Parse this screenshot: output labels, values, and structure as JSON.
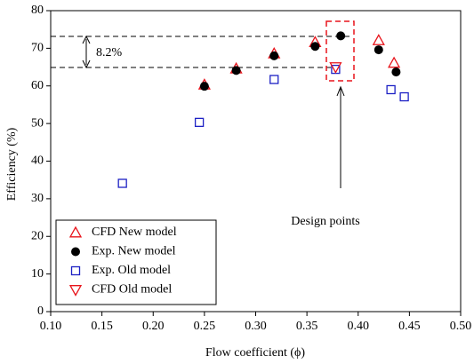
{
  "chart_data": {
    "type": "scatter",
    "xlabel": "Flow coefficient (ϕ)",
    "ylabel": "Efficiency (%)",
    "xlim": [
      0.1,
      0.5
    ],
    "ylim": [
      0,
      80
    ],
    "xticks": [
      {
        "value": 0.1,
        "label": "0.10"
      },
      {
        "value": 0.15,
        "label": "0.15"
      },
      {
        "value": 0.2,
        "label": "0.20"
      },
      {
        "value": 0.25,
        "label": "0.25"
      },
      {
        "value": 0.3,
        "label": "0.30"
      },
      {
        "value": 0.35,
        "label": "0.35"
      },
      {
        "value": 0.4,
        "label": "0.40"
      },
      {
        "value": 0.45,
        "label": "0.45"
      },
      {
        "value": 0.5,
        "label": "0.50"
      }
    ],
    "yticks": [
      0,
      10,
      20,
      30,
      40,
      50,
      60,
      70,
      80
    ],
    "legend": "lower left",
    "annotations": [
      "8.2%",
      "Design points"
    ],
    "series": [
      {
        "name": "CFD New model",
        "color": "#e8141b",
        "marker": "triangle-up",
        "x": [
          0.25,
          0.281,
          0.318,
          0.358,
          0.42,
          0.435
        ],
        "y": [
          60.3,
          64.6,
          68.6,
          71.6,
          72.1,
          66.1
        ]
      },
      {
        "name": "Exp. New model",
        "color": "#000000",
        "marker": "circle",
        "x": [
          0.25,
          0.281,
          0.318,
          0.358,
          0.383,
          0.42,
          0.437
        ],
        "y": [
          59.9,
          64.1,
          68.0,
          70.5,
          73.3,
          69.6,
          63.7
        ]
      },
      {
        "name": "Exp. Old model",
        "color": "#1d21c4",
        "marker": "square",
        "x": [
          0.17,
          0.245,
          0.318,
          0.378,
          0.432,
          0.445
        ],
        "y": [
          34.1,
          50.3,
          61.7,
          64.4,
          59.0,
          57.1
        ]
      },
      {
        "name": "CFD Old model",
        "color": "#e8141b",
        "marker": "triangle-down",
        "x": [
          0.378
        ],
        "y": [
          65.0
        ]
      }
    ]
  }
}
